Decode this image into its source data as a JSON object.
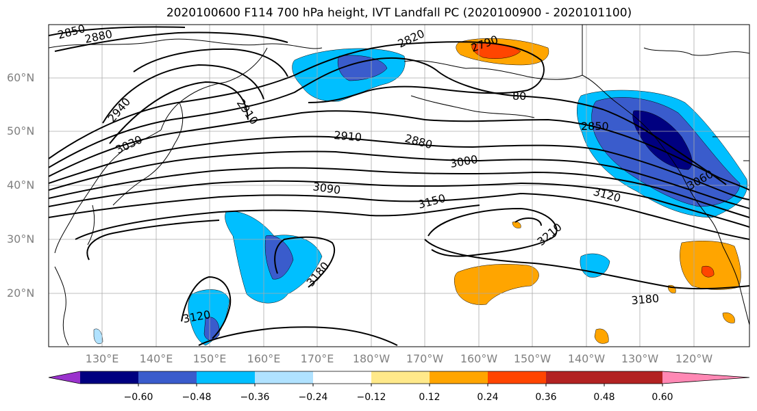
{
  "title": "2020100600 F114 700 hPa height, IVT Landfall PC (2020100900 - 2020101100)",
  "lat_labels": [
    "60°N",
    "50°N",
    "40°N",
    "30°N",
    "20°N"
  ],
  "lon_labels": [
    "130°E",
    "140°E",
    "150°E",
    "160°E",
    "170°E",
    "180°W",
    "170°W",
    "160°W",
    "150°W",
    "140°W",
    "130°W",
    "120°W"
  ],
  "contour_labels": [
    "2850",
    "2880",
    "2820",
    "2790",
    "2940",
    "2910",
    "3030",
    "2910",
    "2880",
    "3000",
    "2850",
    "3090",
    "3150",
    "3120",
    "3060",
    "3210",
    "3180",
    "3180",
    "3120",
    "80"
  ],
  "colorbar": {
    "colors": [
      "#9a32cd",
      "#000080",
      "#3a5ccc",
      "#00bfff",
      "#b0e2ff",
      "#ffffff",
      "#ffe98a",
      "#ffa500",
      "#ff4500",
      "#b22222",
      "#ff88b4"
    ],
    "ticks": [
      "−0.60",
      "−0.48",
      "−0.36",
      "−0.24",
      "−0.12",
      "0.12",
      "0.24",
      "0.36",
      "0.48",
      "0.60"
    ]
  }
}
